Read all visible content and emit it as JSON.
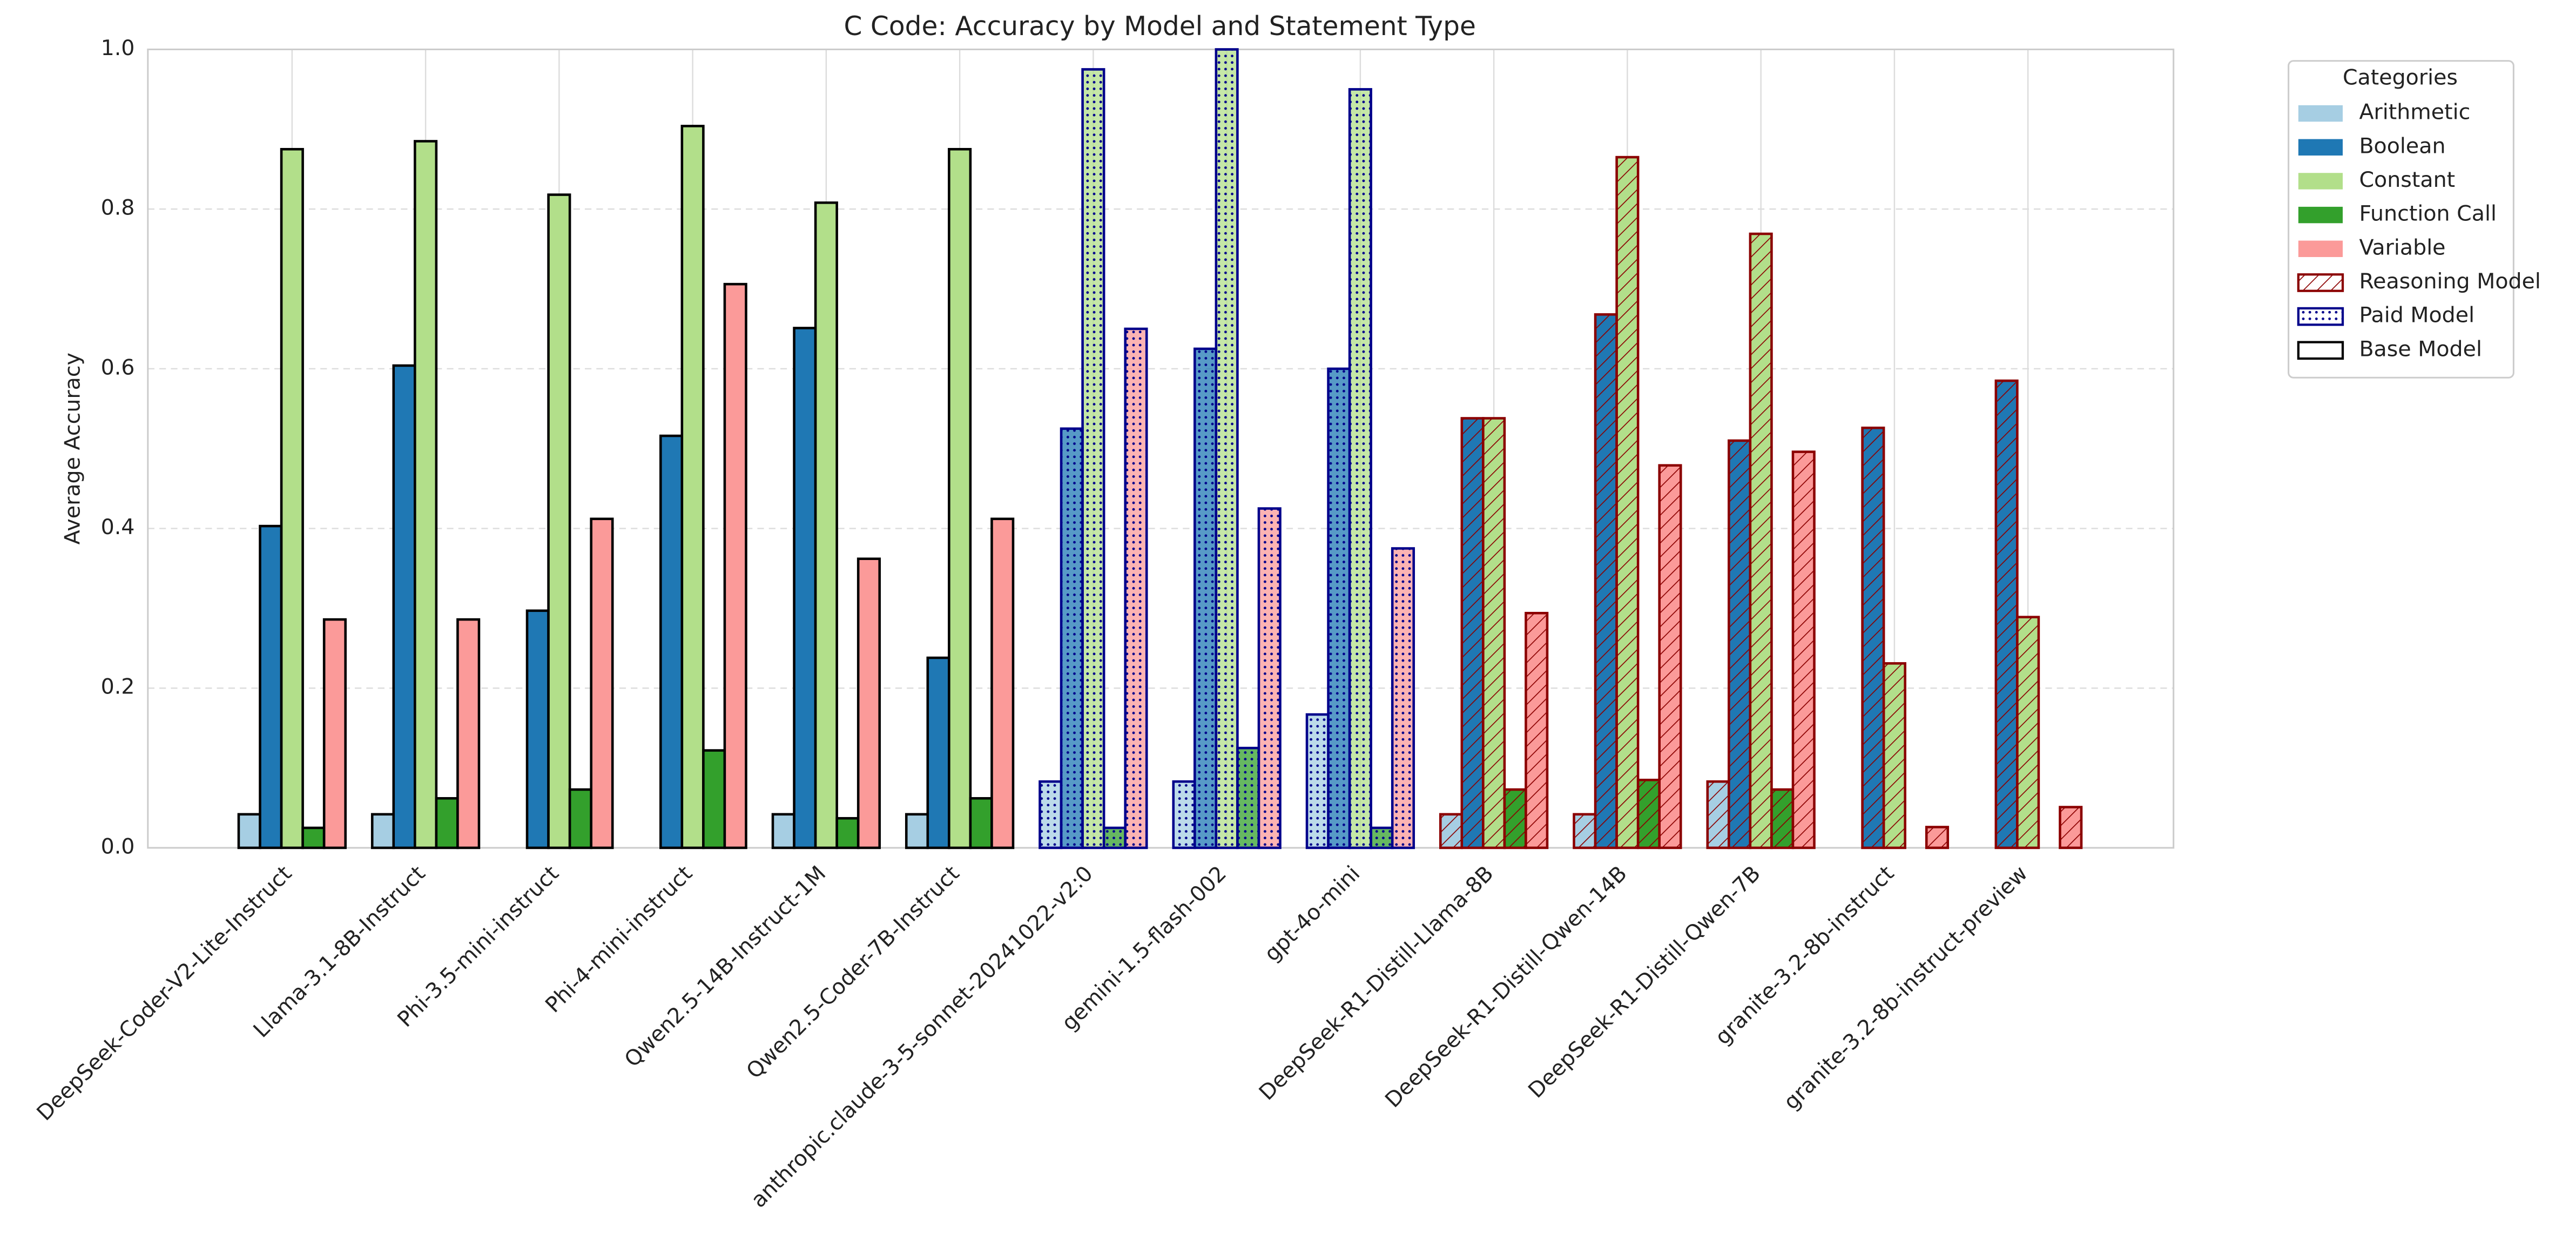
{
  "chart_data": {
    "type": "bar",
    "title": "C Code: Accuracy by Model and Statement Type",
    "y_label": "Average Accuracy",
    "legend_title": "Categories",
    "categories": [
      "DeepSeek-Coder-V2-Lite-Instruct",
      "Llama-3.1-8B-Instruct",
      "Phi-3.5-mini-instruct",
      "Phi-4-mini-instruct",
      "Qwen2.5-14B-Instruct-1M",
      "Qwen2.5-Coder-7B-Instruct",
      "anthropic.claude-3-5-sonnet-20241022-v2:0",
      "gemini-1.5-flash-002",
      "gpt-4o-mini",
      "DeepSeek-R1-Distill-Llama-8B",
      "DeepSeek-R1-Distill-Qwen-14B",
      "DeepSeek-R1-Distill-Qwen-7B",
      "granite-3.2-8b-instruct",
      "granite-3.2-8b-instruct-preview"
    ],
    "model_type": [
      2,
      2,
      2,
      2,
      2,
      2,
      1,
      1,
      1,
      0,
      0,
      0,
      0,
      0
    ],
    "model_groups": [
      {
        "name": "Reasoning Model",
        "edgecolor": "#8b0000",
        "hatch": "diagonal"
      },
      {
        "name": "Paid Model",
        "edgecolor": "#00008b",
        "hatch": "dots"
      },
      {
        "name": "Base Model",
        "edgecolor": "#000000",
        "hatch": "none"
      }
    ],
    "series": [
      {
        "name": "Arithmetic",
        "color": "#a6cee3",
        "values": [
          0.042,
          0.042,
          0,
          0,
          0.042,
          0.042,
          0.083,
          0.083,
          0.167,
          0.042,
          0.042,
          0.083,
          0,
          0
        ]
      },
      {
        "name": "Boolean",
        "color": "#1f78b4",
        "values": [
          0.403,
          0.604,
          0.297,
          0.516,
          0.651,
          0.238,
          0.525,
          0.625,
          0.6,
          0.538,
          0.668,
          0.51,
          0.526,
          0.585
        ]
      },
      {
        "name": "Constant",
        "color": "#b2df8a",
        "values": [
          0.875,
          0.885,
          0.818,
          0.904,
          0.808,
          0.875,
          0.975,
          1.0,
          0.95,
          0.538,
          0.865,
          0.769,
          0.231,
          0.289
        ]
      },
      {
        "name": "Function Call",
        "color": "#33a02c",
        "values": [
          0.025,
          0.062,
          0.073,
          0.122,
          0.037,
          0.062,
          0.025,
          0.125,
          0.025,
          0.073,
          0.085,
          0.073,
          0,
          0
        ]
      },
      {
        "name": "Variable",
        "color": "#fb9a99",
        "values": [
          0.286,
          0.286,
          0.412,
          0.706,
          0.362,
          0.412,
          0.65,
          0.425,
          0.375,
          0.294,
          0.479,
          0.496,
          0.026,
          0.051
        ]
      }
    ],
    "ylim": [
      0,
      1
    ],
    "yticks": [
      {
        "value": 0,
        "label": "0.0"
      },
      {
        "value": 0.2,
        "label": "0.2"
      },
      {
        "value": 0.4,
        "label": "0.4"
      },
      {
        "value": 0.6,
        "label": "0.6"
      },
      {
        "value": 0.8,
        "label": "0.8"
      },
      {
        "value": 1,
        "label": "1.0"
      }
    ],
    "grid": true
  }
}
